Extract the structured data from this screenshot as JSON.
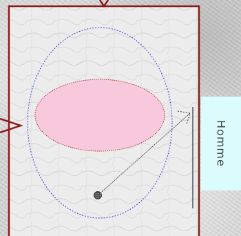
{
  "diagram": {
    "side_label": "Homme",
    "colors": {
      "frame": "#8b1a1a",
      "outer_ellipse": "#3b3bd6",
      "inner_ellipse_fill": "#f8c9dc",
      "inner_ellipse_stroke": "#b03030",
      "label_bg": "#dcfbfc"
    },
    "icons": {
      "top_arrow": "arrow-down-icon",
      "left_arrow": "arrow-right-icon",
      "pointer_arrow": "arrow-up-right-icon"
    }
  }
}
